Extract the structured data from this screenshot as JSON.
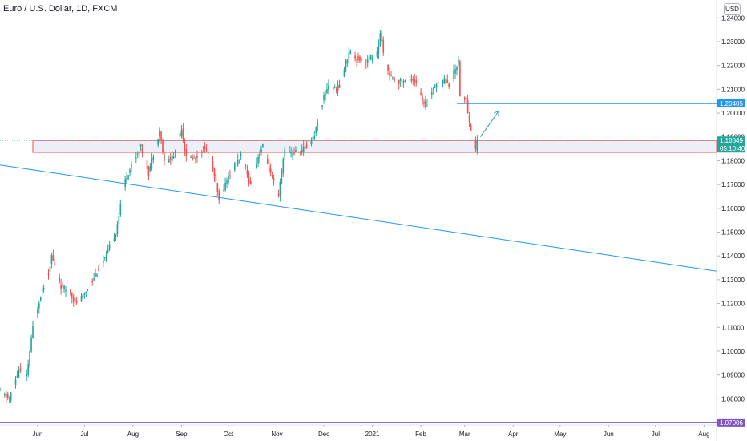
{
  "header": {
    "title": "Euro / U.S. Dollar, 1D, FXCM",
    "currency": "USD"
  },
  "colors": {
    "up": "#26a69a",
    "down": "#ef5350",
    "trend": "#2196f3",
    "support": "#7e57c2",
    "resistance": "#2196f3",
    "zone_fill": "#dfe5f2",
    "zone_border": "#ef5350"
  },
  "price_labels": {
    "current_price": "1.18849",
    "countdown": "05:10:40",
    "resistance": "1.20405",
    "support": "1.07006"
  },
  "chart_data": {
    "type": "candlestick",
    "title": "Euro / U.S. Dollar, 1D, FXCM",
    "ylim": [
      1.069,
      1.2475
    ],
    "y_ticks": [
      "1.24000",
      "1.23000",
      "1.22000",
      "1.21000",
      "1.20000",
      "1.19000",
      "1.18000",
      "1.17000",
      "1.16000",
      "1.15000",
      "1.14000",
      "1.13000",
      "1.12000",
      "1.11000",
      "1.10000",
      "1.09000",
      "1.08000"
    ],
    "x_labels": [
      {
        "label": "Jun",
        "date": "2020-06-01"
      },
      {
        "label": "Jul",
        "date": "2020-07-01"
      },
      {
        "label": "Aug",
        "date": "2020-08-01"
      },
      {
        "label": "Sep",
        "date": "2020-09-01"
      },
      {
        "label": "Oct",
        "date": "2020-10-01"
      },
      {
        "label": "Nov",
        "date": "2020-11-01"
      },
      {
        "label": "Dec",
        "date": "2020-12-01"
      },
      {
        "label": "2021",
        "date": "2021-01-01"
      },
      {
        "label": "Feb",
        "date": "2021-02-01"
      },
      {
        "label": "Mar",
        "date": "2021-03-01"
      },
      {
        "label": "Apr",
        "date": "2021-04-01"
      },
      {
        "label": "May",
        "date": "2021-05-01"
      },
      {
        "label": "Jun",
        "date": "2021-06-01"
      },
      {
        "label": "Jul",
        "date": "2021-07-01"
      },
      {
        "label": "Aug",
        "date": "2021-08-01"
      }
    ],
    "x_range": [
      "2020-05-08",
      "2021-08-09"
    ],
    "path_points": [
      [
        "2020-05-08",
        1.083
      ],
      [
        "2020-05-14",
        1.08
      ],
      [
        "2020-05-20",
        1.092
      ],
      [
        "2020-05-25",
        1.0895
      ],
      [
        "2020-05-29",
        1.11
      ],
      [
        "2020-06-03",
        1.124
      ],
      [
        "2020-06-08",
        1.133
      ],
      [
        "2020-06-10",
        1.14
      ],
      [
        "2020-06-16",
        1.127
      ],
      [
        "2020-06-22",
        1.125
      ],
      [
        "2020-06-25",
        1.12
      ],
      [
        "2020-06-30",
        1.123
      ],
      [
        "2020-07-06",
        1.13
      ],
      [
        "2020-07-14",
        1.139
      ],
      [
        "2020-07-21",
        1.15
      ],
      [
        "2020-07-27",
        1.172
      ],
      [
        "2020-07-31",
        1.178
      ],
      [
        "2020-08-06",
        1.186
      ],
      [
        "2020-08-11",
        1.175
      ],
      [
        "2020-08-18",
        1.193
      ],
      [
        "2020-08-21",
        1.179
      ],
      [
        "2020-08-27",
        1.182
      ],
      [
        "2020-09-01",
        1.194
      ],
      [
        "2020-09-04",
        1.181
      ],
      [
        "2020-09-10",
        1.181
      ],
      [
        "2020-09-16",
        1.186
      ],
      [
        "2020-09-21",
        1.177
      ],
      [
        "2020-09-25",
        1.163
      ],
      [
        "2020-09-30",
        1.172
      ],
      [
        "2020-10-05",
        1.178
      ],
      [
        "2020-10-09",
        1.182
      ],
      [
        "2020-10-15",
        1.17
      ],
      [
        "2020-10-21",
        1.184
      ],
      [
        "2020-10-23",
        1.186
      ],
      [
        "2020-10-28",
        1.174
      ],
      [
        "2020-11-02",
        1.165
      ],
      [
        "2020-11-06",
        1.186
      ],
      [
        "2020-11-09",
        1.183
      ],
      [
        "2020-11-16",
        1.184
      ],
      [
        "2020-11-20",
        1.186
      ],
      [
        "2020-11-25",
        1.191
      ],
      [
        "2020-12-01",
        1.207
      ],
      [
        "2020-12-04",
        1.212
      ],
      [
        "2020-12-08",
        1.21
      ],
      [
        "2020-12-11",
        1.211
      ],
      [
        "2020-12-17",
        1.226
      ],
      [
        "2020-12-22",
        1.223
      ],
      [
        "2020-12-28",
        1.222
      ],
      [
        "2021-01-04",
        1.225
      ],
      [
        "2021-01-06",
        1.233
      ],
      [
        "2021-01-11",
        1.217
      ],
      [
        "2021-01-14",
        1.214
      ],
      [
        "2021-01-20",
        1.213
      ],
      [
        "2021-01-26",
        1.215
      ],
      [
        "2021-01-29",
        1.213
      ],
      [
        "2021-02-03",
        1.203
      ],
      [
        "2021-02-05",
        1.205
      ],
      [
        "2021-02-10",
        1.212
      ],
      [
        "2021-02-16",
        1.214
      ],
      [
        "2021-02-19",
        1.212
      ],
      [
        "2021-02-25",
        1.222
      ],
      [
        "2021-02-26",
        1.208
      ],
      [
        "2021-03-02",
        1.205
      ],
      [
        "2021-03-04",
        1.196
      ],
      [
        "2021-03-08",
        1.185
      ],
      [
        "2021-03-09",
        1.1885
      ]
    ],
    "trendline": [
      [
        "2020-05-08",
        1.1782
      ],
      [
        "2021-08-09",
        1.1336
      ]
    ],
    "support_level": 1.07006,
    "resistance_line": {
      "from": "2021-02-24",
      "to": "2021-08-09",
      "price": 1.20405
    },
    "zone": {
      "from": "2020-05-29",
      "to": "2021-08-09",
      "top": 1.1885,
      "bottom": 1.1835
    },
    "projection_arrow": [
      [
        "2021-03-11",
        1.19
      ],
      [
        "2021-03-23",
        1.201
      ]
    ]
  }
}
